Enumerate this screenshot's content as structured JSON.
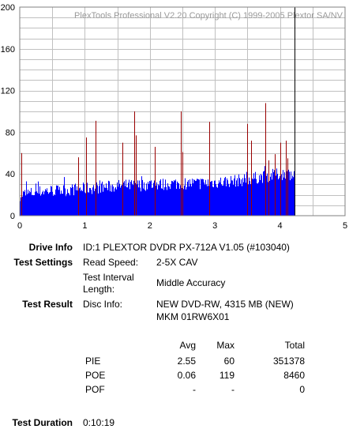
{
  "chart_data": {
    "type": "bar",
    "title": "PlexTools Professional V2.20 Copyright (C) 1999-2005 Plextor SA/NV",
    "xlabel": "",
    "ylabel": "",
    "xlim": [
      0,
      5
    ],
    "ylim": [
      0,
      200
    ],
    "x_ticks": [
      "0",
      "1",
      "2",
      "3",
      "4",
      "5"
    ],
    "y_ticks": [
      "200",
      "160",
      "120",
      "80",
      "40",
      "0"
    ],
    "grid": true,
    "colors": {
      "pie": "#0000ff",
      "poe": "#990000",
      "end_marker": "#000000",
      "grid": "#c0c0c0"
    },
    "end_marker_x": 4.22,
    "series": [
      {
        "x": [
          0.0,
          0.2,
          0.4,
          0.6,
          0.8,
          1.0,
          1.2,
          1.4,
          1.6,
          1.8,
          2.0,
          2.2,
          2.4,
          2.6,
          2.8,
          3.0,
          3.2,
          3.4,
          3.6,
          3.8,
          4.0,
          4.2
        ],
        "values": [
          20,
          22,
          24,
          24,
          25,
          26,
          27,
          28,
          29,
          29,
          30,
          30,
          31,
          31,
          31,
          32,
          33,
          34,
          36,
          38,
          40,
          40
        ]
      },
      {
        "x": [
          0.02,
          0.9,
          1.02,
          1.17,
          1.58,
          1.76,
          1.79,
          2.07,
          2.47,
          2.5,
          2.91,
          3.49,
          3.55,
          3.78,
          3.82,
          3.92,
          4.0,
          4.09,
          4.11
        ],
        "values": [
          60,
          56,
          75,
          91,
          70,
          100,
          77,
          66,
          100,
          61,
          90,
          88,
          72,
          108,
          53,
          59,
          70,
          72,
          55
        ]
      }
    ]
  },
  "info": {
    "drive_info_label": "Drive Info",
    "drive_info_value": "ID:1 PLEXTOR DVDR PX-712A V1.05 (#103040)",
    "test_settings_label": "Test Settings",
    "read_speed_label": "Read Speed:",
    "read_speed_value": "2-5X CAV",
    "interval_label_1": "Test Interval",
    "interval_label_2": "Length:",
    "interval_value": "Middle Accuracy",
    "test_result_label": "Test Result",
    "disc_info_label": "Disc Info:",
    "disc_info_value_1": "NEW DVD-RW, 4315 MB (NEW)",
    "disc_info_value_2": "MKM 01RW6X01",
    "test_duration_label": "Test Duration",
    "test_duration_value": "0:10:19"
  },
  "stats": {
    "headers": [
      "Avg",
      "Max",
      "Total"
    ],
    "rows": [
      {
        "name": "PIE",
        "avg": "2.55",
        "max": "60",
        "total": "351378"
      },
      {
        "name": "POE",
        "avg": "0.06",
        "max": "119",
        "total": "8460"
      },
      {
        "name": "POF",
        "avg": "-",
        "max": "-",
        "total": "0"
      }
    ]
  }
}
